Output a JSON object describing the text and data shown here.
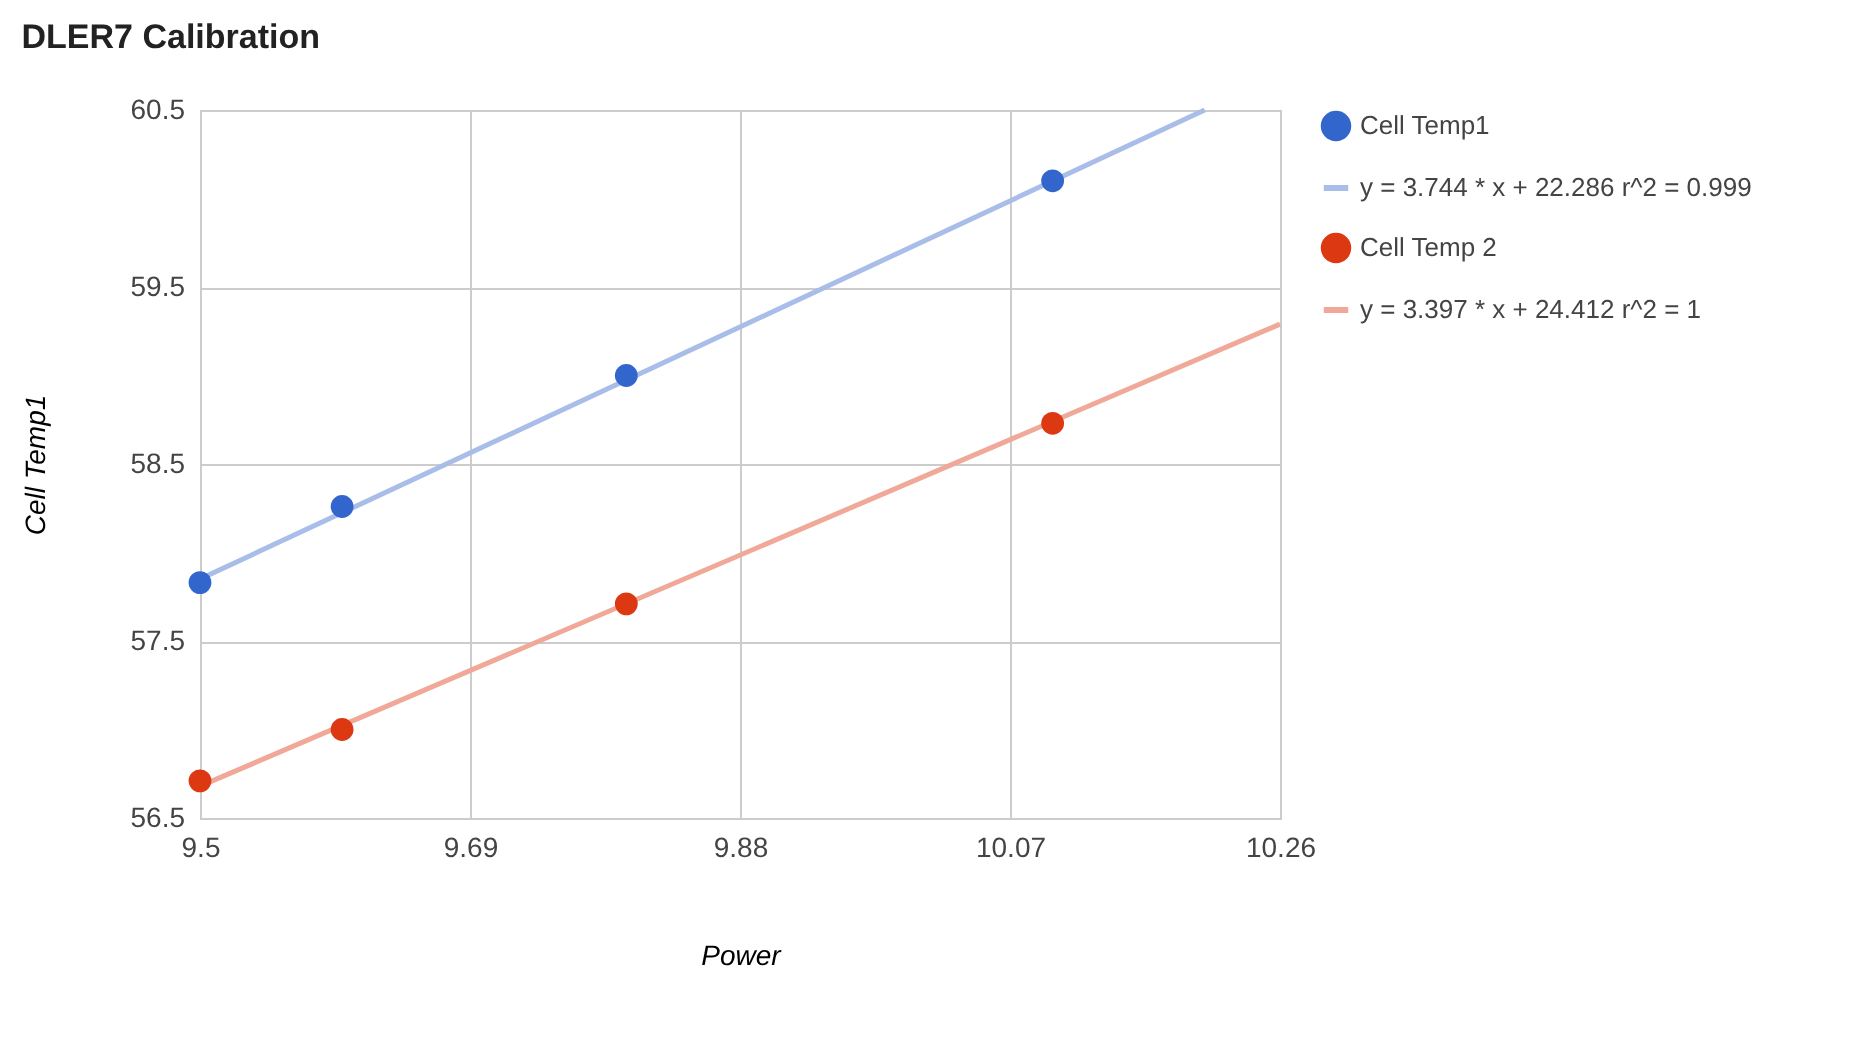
{
  "chart_data": {
    "type": "scatter",
    "title": "DLER7 Calibration",
    "xlabel": "Power",
    "ylabel": "Cell Temp1",
    "xlim": [
      9.5,
      10.26
    ],
    "xticks": [
      9.5,
      9.69,
      9.88,
      10.07,
      10.26
    ],
    "ylim": [
      56.5,
      60.5
    ],
    "yticks": [
      56.5,
      57.5,
      58.5,
      59.5,
      60.5
    ],
    "grid": true,
    "legend": "top right",
    "marker": "circle",
    "series": [
      {
        "name": "Cell Temp1",
        "color": "#3366cc",
        "x": [
          9.5,
          9.6,
          9.8,
          10.1
        ],
        "values": [
          57.83,
          58.26,
          59.0,
          60.1
        ]
      },
      {
        "name": "y = 3.744 * x + 22.286 r^2 = 0.999",
        "type": "line",
        "marker": "none",
        "color": "#a8bde8",
        "x": [
          9.5,
          10.207
        ],
        "values": [
          57.85,
          60.5
        ]
      },
      {
        "name": "Cell Temp 2",
        "color": "#dc3912",
        "x": [
          9.5,
          9.6,
          9.8,
          10.1
        ],
        "values": [
          56.71,
          57.0,
          57.71,
          58.73
        ]
      },
      {
        "name": "y = 3.397 * x + 24.412 r^2 = 1",
        "type": "line",
        "marker": "none",
        "color": "#f0a898",
        "x": [
          9.5,
          10.26
        ],
        "values": [
          56.68,
          59.29
        ]
      }
    ]
  }
}
